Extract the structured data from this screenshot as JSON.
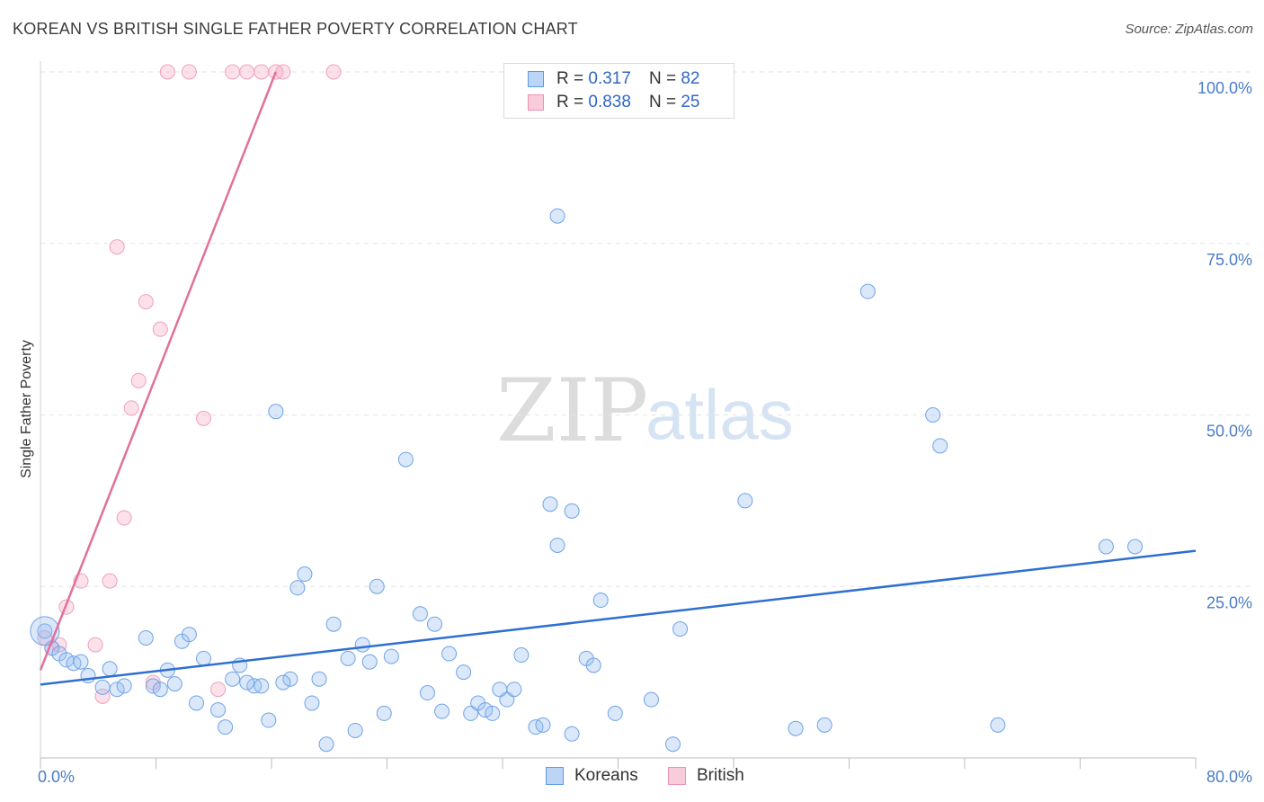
{
  "header": {
    "title": "KOREAN VS BRITISH SINGLE FATHER POVERTY CORRELATION CHART",
    "source": "Source: ZipAtlas.com"
  },
  "watermark": {
    "zip": "ZIP",
    "atlas": "atlas"
  },
  "legend": {
    "rows": [
      {
        "r_label": "R = ",
        "r_value": "0.317",
        "n_label": "N = ",
        "n_value": "82",
        "color": "#5b9ae6"
      },
      {
        "r_label": "R = ",
        "r_value": "0.838",
        "n_label": "N = ",
        "n_value": "25",
        "color": "#f08fb0"
      }
    ]
  },
  "bottom_legend": {
    "koreans": "Koreans",
    "british": "British"
  },
  "chart_data": {
    "type": "scatter",
    "title": "KOREAN VS BRITISH SINGLE FATHER POVERTY CORRELATION CHART",
    "xlabel": "",
    "ylabel": "Single Father Poverty",
    "xlim": [
      0,
      80
    ],
    "ylim": [
      0,
      100
    ],
    "x_tick_labels": [
      "0.0%",
      "80.0%"
    ],
    "y_tick_labels": [
      "25.0%",
      "50.0%",
      "75.0%",
      "100.0%"
    ],
    "y_ticks": [
      25,
      50,
      75,
      100
    ],
    "series": [
      {
        "name": "Koreans",
        "color": "#5b9ae6",
        "trend": {
          "x": [
            0,
            80
          ],
          "y": [
            10.7,
            30.2
          ]
        },
        "points": [
          [
            0.3,
            18.5
          ],
          [
            0.8,
            16.0
          ],
          [
            1.3,
            15.2
          ],
          [
            1.8,
            14.3
          ],
          [
            2.3,
            13.8
          ],
          [
            2.8,
            14.0
          ],
          [
            3.3,
            12.0
          ],
          [
            4.3,
            10.3
          ],
          [
            5.3,
            10.0
          ],
          [
            5.8,
            10.5
          ],
          [
            4.8,
            13.0
          ],
          [
            7.3,
            17.5
          ],
          [
            8.8,
            12.8
          ],
          [
            9.8,
            17.0
          ],
          [
            10.3,
            18.0
          ],
          [
            11.3,
            14.5
          ],
          [
            12.3,
            7.0
          ],
          [
            13.3,
            11.5
          ],
          [
            13.8,
            13.5
          ],
          [
            14.8,
            10.5
          ],
          [
            15.3,
            10.5
          ],
          [
            16.3,
            50.5
          ],
          [
            17.3,
            11.5
          ],
          [
            17.8,
            24.8
          ],
          [
            18.3,
            26.8
          ],
          [
            19.3,
            11.5
          ],
          [
            19.8,
            2.0
          ],
          [
            20.3,
            19.5
          ],
          [
            21.3,
            14.5
          ],
          [
            22.3,
            16.5
          ],
          [
            22.8,
            14.0
          ],
          [
            23.3,
            25.0
          ],
          [
            23.8,
            6.5
          ],
          [
            24.3,
            14.8
          ],
          [
            25.3,
            43.5
          ],
          [
            26.3,
            21.0
          ],
          [
            27.3,
            19.5
          ],
          [
            27.8,
            6.8
          ],
          [
            28.3,
            15.2
          ],
          [
            29.3,
            12.5
          ],
          [
            29.8,
            6.5
          ],
          [
            30.3,
            8.0
          ],
          [
            30.8,
            7.0
          ],
          [
            31.3,
            6.5
          ],
          [
            32.3,
            8.5
          ],
          [
            32.8,
            10.0
          ],
          [
            33.3,
            15.0
          ],
          [
            34.3,
            4.5
          ],
          [
            34.8,
            4.8
          ],
          [
            35.3,
            37.0
          ],
          [
            35.8,
            31.0
          ],
          [
            35.8,
            79.0
          ],
          [
            36.8,
            36.0
          ],
          [
            36.8,
            3.5
          ],
          [
            37.8,
            14.5
          ],
          [
            38.3,
            13.5
          ],
          [
            38.8,
            23.0
          ],
          [
            39.8,
            6.5
          ],
          [
            42.3,
            8.5
          ],
          [
            43.8,
            2.0
          ],
          [
            44.3,
            18.8
          ],
          [
            48.8,
            37.5
          ],
          [
            52.3,
            4.3
          ],
          [
            54.3,
            4.8
          ],
          [
            57.3,
            68.0
          ],
          [
            61.8,
            50.0
          ],
          [
            62.3,
            45.5
          ],
          [
            66.3,
            4.8
          ],
          [
            73.8,
            30.8
          ],
          [
            75.8,
            30.8
          ],
          [
            7.8,
            10.5
          ],
          [
            8.3,
            10.0
          ],
          [
            9.3,
            10.8
          ],
          [
            10.8,
            8.0
          ],
          [
            12.8,
            4.5
          ],
          [
            14.3,
            11.0
          ],
          [
            15.8,
            5.5
          ],
          [
            16.8,
            11.0
          ],
          [
            18.8,
            8.0
          ],
          [
            21.8,
            4.0
          ],
          [
            26.8,
            9.5
          ],
          [
            31.8,
            10.0
          ]
        ]
      },
      {
        "name": "British",
        "color": "#f08fb0",
        "trend": {
          "x": [
            0,
            16.3
          ],
          "y": [
            12.8,
            100
          ]
        },
        "points": [
          [
            0.3,
            17.5
          ],
          [
            0.8,
            16.0
          ],
          [
            1.3,
            16.5
          ],
          [
            1.8,
            22.0
          ],
          [
            2.8,
            25.8
          ],
          [
            3.8,
            16.5
          ],
          [
            4.8,
            25.8
          ],
          [
            4.3,
            9.0
          ],
          [
            5.3,
            74.5
          ],
          [
            5.8,
            35.0
          ],
          [
            6.3,
            51.0
          ],
          [
            6.8,
            55.0
          ],
          [
            7.3,
            66.5
          ],
          [
            8.3,
            62.5
          ],
          [
            8.8,
            100.0
          ],
          [
            10.3,
            100.0
          ],
          [
            11.3,
            49.5
          ],
          [
            12.3,
            10.0
          ],
          [
            13.3,
            100.0
          ],
          [
            14.3,
            100.0
          ],
          [
            15.3,
            100.0
          ],
          [
            16.3,
            100.0
          ],
          [
            16.8,
            100.0
          ],
          [
            20.3,
            100.0
          ],
          [
            7.8,
            11.0
          ]
        ]
      }
    ]
  }
}
